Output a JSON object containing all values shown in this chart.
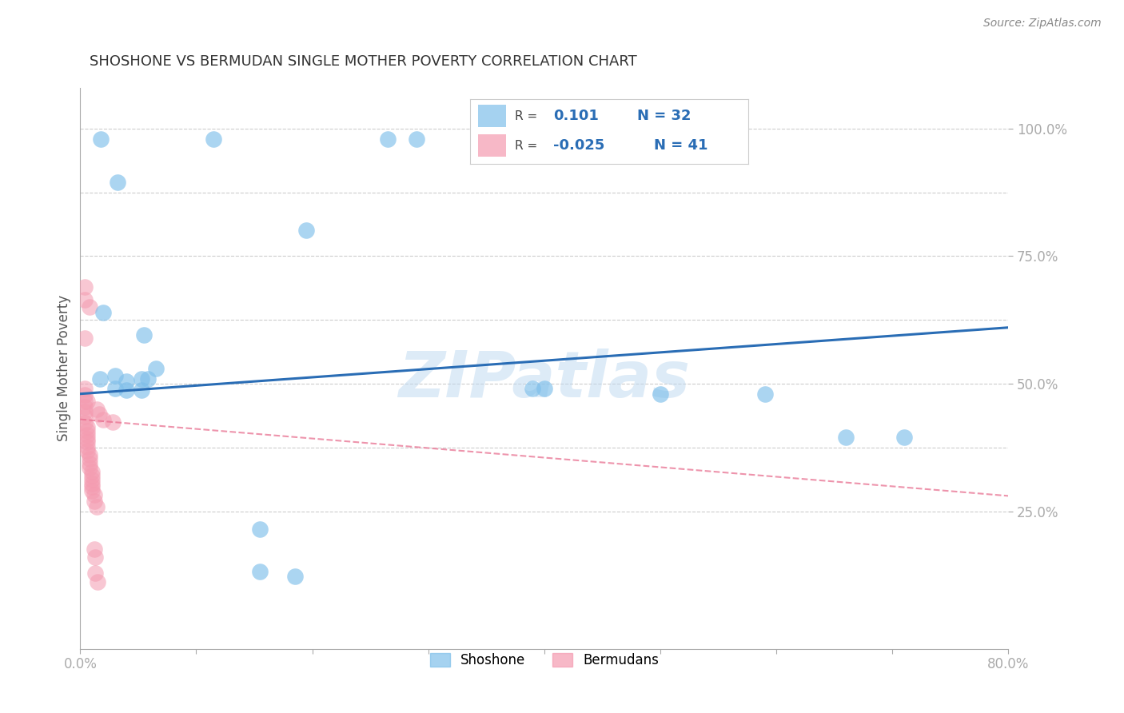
{
  "title": "SHOSHONE VS BERMUDAN SINGLE MOTHER POVERTY CORRELATION CHART",
  "source": "Source: ZipAtlas.com",
  "ylabel": "Single Mother Poverty",
  "xlim": [
    0.0,
    0.8
  ],
  "ylim": [
    -0.02,
    1.08
  ],
  "shoshone_color": "#7fbfea",
  "bermudans_color": "#f49ab0",
  "shoshone_line_color": "#2a6db5",
  "bermudans_line_color": "#e87090",
  "watermark": "ZIPatlas",
  "background_color": "#ffffff",
  "grid_color": "#cccccc",
  "shoshone_x": [
    0.018,
    0.115,
    0.265,
    0.29,
    0.032,
    0.195,
    0.02,
    0.055,
    0.017,
    0.03,
    0.04,
    0.053,
    0.03,
    0.04,
    0.053,
    0.058,
    0.065,
    0.39,
    0.4,
    0.5,
    0.66,
    0.71,
    0.155,
    0.155,
    0.185,
    0.59
  ],
  "shoshone_y": [
    0.98,
    0.98,
    0.98,
    0.98,
    0.895,
    0.8,
    0.64,
    0.595,
    0.51,
    0.515,
    0.505,
    0.51,
    0.49,
    0.488,
    0.488,
    0.51,
    0.53,
    0.49,
    0.49,
    0.48,
    0.395,
    0.395,
    0.215,
    0.132,
    0.122,
    0.48
  ],
  "bermudans_x": [
    0.004,
    0.004,
    0.008,
    0.004,
    0.004,
    0.004,
    0.004,
    0.004,
    0.004,
    0.004,
    0.004,
    0.006,
    0.006,
    0.006,
    0.006,
    0.006,
    0.006,
    0.006,
    0.008,
    0.008,
    0.008,
    0.008,
    0.01,
    0.01,
    0.01,
    0.01,
    0.01,
    0.01,
    0.012,
    0.012,
    0.014,
    0.012,
    0.013,
    0.013,
    0.015,
    0.006,
    0.014,
    0.016,
    0.02,
    0.028
  ],
  "bermudans_y": [
    0.69,
    0.665,
    0.65,
    0.59,
    0.49,
    0.478,
    0.465,
    0.455,
    0.445,
    0.435,
    0.423,
    0.415,
    0.408,
    0.4,
    0.392,
    0.385,
    0.376,
    0.368,
    0.36,
    0.352,
    0.344,
    0.336,
    0.328,
    0.32,
    0.312,
    0.304,
    0.298,
    0.29,
    0.282,
    0.27,
    0.258,
    0.175,
    0.16,
    0.128,
    0.112,
    0.465,
    0.45,
    0.44,
    0.43,
    0.425
  ],
  "shoshone_line_x": [
    0.0,
    0.8
  ],
  "shoshone_line_y": [
    0.48,
    0.61
  ],
  "bermudans_line_x": [
    0.0,
    0.8
  ],
  "bermudans_line_y": [
    0.43,
    0.28
  ],
  "yticks": [
    0.25,
    0.5,
    0.75,
    1.0
  ],
  "ytick_labels": [
    "25.0%",
    "50.0%",
    "75.0%",
    "100.0%"
  ],
  "ytick_color": "#4da6ff",
  "xtick_color": "#4da6ff"
}
